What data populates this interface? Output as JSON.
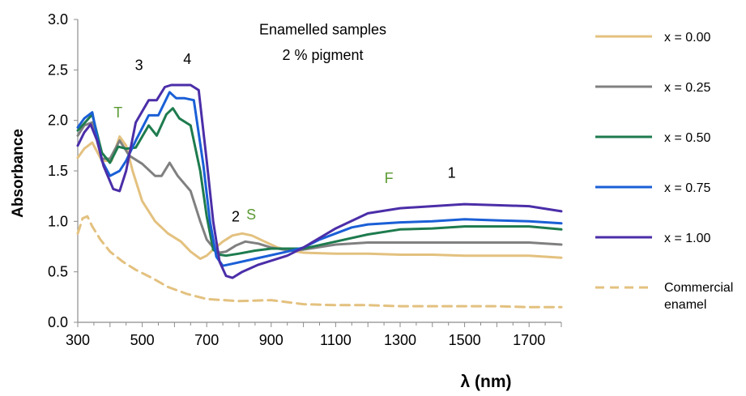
{
  "chart_data": {
    "type": "line",
    "title": "",
    "xlabel": "λ (nm)",
    "ylabel": "Absorbance",
    "xlim": [
      300,
      1800
    ],
    "ylim": [
      0,
      3
    ],
    "x_ticks": [
      300,
      500,
      700,
      900,
      1100,
      1300,
      1500,
      1700
    ],
    "y_ticks": [
      "0.0",
      "0.5",
      "1.0",
      "1.5",
      "2.0",
      "2.5",
      "3.0"
    ],
    "grid": false,
    "legend_position": "right",
    "annotations": [
      {
        "text": "Enamelled samples",
        "x": 1060,
        "y": 2.85,
        "color": "#000000"
      },
      {
        "text": "2 % pigment",
        "x": 1060,
        "y": 2.6,
        "color": "#000000"
      },
      {
        "text": "3",
        "x": 490,
        "y": 2.5,
        "color": "#000000"
      },
      {
        "text": "4",
        "x": 640,
        "y": 2.56,
        "color": "#000000"
      },
      {
        "text": "T",
        "x": 425,
        "y": 2.03,
        "color": "#5a9a32"
      },
      {
        "text": "2",
        "x": 790,
        "y": 1.0,
        "color": "#000000"
      },
      {
        "text": "S",
        "x": 838,
        "y": 1.02,
        "color": "#5a9a32"
      },
      {
        "text": "F",
        "x": 1265,
        "y": 1.38,
        "color": "#5a9a32"
      },
      {
        "text": "1",
        "x": 1460,
        "y": 1.43,
        "color": "#000000"
      }
    ],
    "series": [
      {
        "name": "x = 0.00",
        "color": "#e3c17f",
        "dash": false,
        "x": [
          300,
          320,
          345,
          375,
          405,
          430,
          450,
          470,
          500,
          540,
          580,
          620,
          650,
          680,
          700,
          720,
          750,
          780,
          810,
          840,
          880,
          920,
          960,
          1000,
          1100,
          1200,
          1300,
          1400,
          1500,
          1600,
          1700,
          1800
        ],
        "y": [
          1.63,
          1.72,
          1.78,
          1.6,
          1.6,
          1.84,
          1.75,
          1.5,
          1.2,
          1.0,
          0.88,
          0.8,
          0.7,
          0.63,
          0.66,
          0.72,
          0.8,
          0.86,
          0.88,
          0.86,
          0.8,
          0.74,
          0.71,
          0.69,
          0.68,
          0.68,
          0.67,
          0.67,
          0.66,
          0.66,
          0.66,
          0.64
        ]
      },
      {
        "name": "x = 0.25",
        "color": "#808080",
        "dash": false,
        "x": [
          300,
          320,
          345,
          375,
          400,
          430,
          460,
          500,
          540,
          560,
          585,
          610,
          650,
          680,
          700,
          720,
          740,
          760,
          790,
          820,
          860,
          900,
          960,
          1000,
          1100,
          1200,
          1300,
          1400,
          1500,
          1600,
          1700,
          1800
        ],
        "y": [
          1.85,
          1.95,
          1.98,
          1.62,
          1.62,
          1.8,
          1.65,
          1.57,
          1.45,
          1.45,
          1.58,
          1.45,
          1.3,
          1.0,
          0.82,
          0.74,
          0.69,
          0.7,
          0.76,
          0.8,
          0.78,
          0.74,
          0.71,
          0.72,
          0.77,
          0.79,
          0.79,
          0.79,
          0.79,
          0.79,
          0.79,
          0.77
        ]
      },
      {
        "name": "x = 0.50",
        "color": "#1e7b4e",
        "dash": false,
        "x": [
          300,
          320,
          345,
          375,
          400,
          425,
          450,
          480,
          520,
          545,
          575,
          595,
          615,
          650,
          680,
          700,
          720,
          740,
          760,
          800,
          850,
          900,
          1000,
          1100,
          1200,
          1300,
          1400,
          1500,
          1600,
          1700,
          1800
        ],
        "y": [
          1.9,
          1.97,
          2.06,
          1.68,
          1.58,
          1.74,
          1.72,
          1.73,
          1.95,
          1.85,
          2.06,
          2.12,
          2.02,
          1.95,
          1.5,
          1.05,
          0.72,
          0.67,
          0.66,
          0.68,
          0.71,
          0.73,
          0.73,
          0.8,
          0.87,
          0.92,
          0.93,
          0.95,
          0.95,
          0.95,
          0.92
        ]
      },
      {
        "name": "x = 0.75",
        "color": "#1a5fd6",
        "dash": false,
        "x": [
          300,
          320,
          345,
          375,
          400,
          430,
          450,
          480,
          520,
          550,
          585,
          605,
          630,
          660,
          690,
          710,
          730,
          750,
          780,
          850,
          950,
          1000,
          1050,
          1150,
          1200,
          1300,
          1400,
          1500,
          1600,
          1700,
          1800
        ],
        "y": [
          1.93,
          2.02,
          2.08,
          1.6,
          1.45,
          1.5,
          1.6,
          1.8,
          2.05,
          2.05,
          2.28,
          2.22,
          2.22,
          2.2,
          1.55,
          1.0,
          0.65,
          0.56,
          0.58,
          0.63,
          0.7,
          0.74,
          0.82,
          0.94,
          0.97,
          0.99,
          1.0,
          1.02,
          1.01,
          1.0,
          0.98
        ]
      },
      {
        "name": "x = 1.00",
        "color": "#4b2ea8",
        "dash": false,
        "x": [
          300,
          320,
          340,
          360,
          380,
          410,
          430,
          450,
          480,
          520,
          545,
          570,
          590,
          620,
          650,
          675,
          700,
          720,
          740,
          760,
          780,
          810,
          860,
          950,
          1000,
          1100,
          1200,
          1300,
          1400,
          1500,
          1600,
          1700,
          1800
        ],
        "y": [
          1.75,
          1.88,
          1.96,
          1.8,
          1.55,
          1.32,
          1.3,
          1.5,
          1.98,
          2.2,
          2.2,
          2.33,
          2.35,
          2.35,
          2.35,
          2.3,
          1.6,
          1.0,
          0.6,
          0.46,
          0.44,
          0.5,
          0.57,
          0.66,
          0.74,
          0.93,
          1.08,
          1.13,
          1.15,
          1.17,
          1.16,
          1.15,
          1.1
        ]
      },
      {
        "name": "Commercial enamel",
        "color": "#e3c17f",
        "dash": true,
        "x": [
          300,
          315,
          330,
          345,
          370,
          400,
          440,
          480,
          530,
          580,
          640,
          700,
          800,
          900,
          1000,
          1100,
          1200,
          1300,
          1400,
          1500,
          1600,
          1700,
          1800
        ],
        "y": [
          0.88,
          1.03,
          1.05,
          0.95,
          0.82,
          0.7,
          0.6,
          0.52,
          0.44,
          0.35,
          0.28,
          0.23,
          0.21,
          0.22,
          0.18,
          0.17,
          0.17,
          0.16,
          0.16,
          0.16,
          0.16,
          0.15,
          0.15
        ]
      }
    ]
  }
}
